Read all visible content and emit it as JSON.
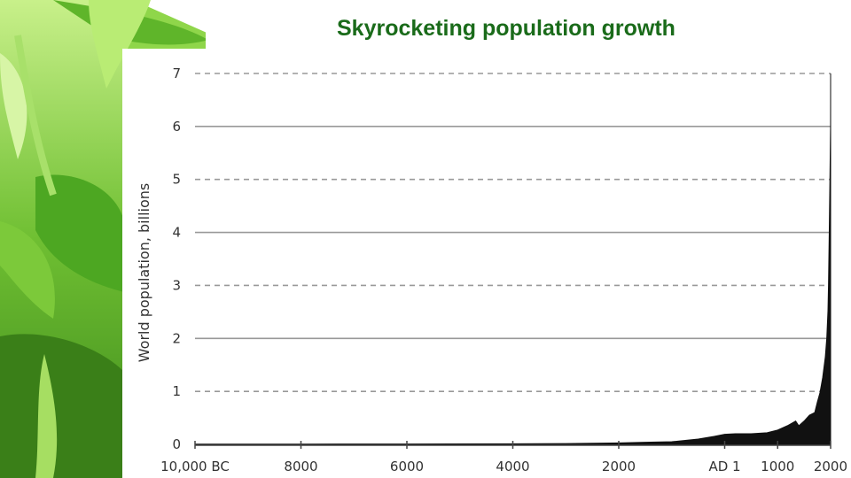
{
  "slide": {
    "title": "Skyrocketing population growth"
  },
  "chart_data": {
    "type": "area",
    "title": "Skyrocketing population growth",
    "xlabel": "",
    "ylabel": "World population, billions",
    "x_tick_labels": [
      "10,000 BC",
      "8000",
      "6000",
      "4000",
      "2000",
      "AD 1",
      "1000",
      "2000"
    ],
    "x_ticks": [
      -10000,
      -8000,
      -6000,
      -4000,
      -2000,
      0,
      1000,
      2000
    ],
    "xlim": [
      -10000,
      2000
    ],
    "ylim": [
      0,
      7
    ],
    "y_ticks": [
      0,
      1,
      2,
      3,
      4,
      5,
      6,
      7
    ],
    "grid": "horizontal, dashed at odd values, solid at even values",
    "series": [
      {
        "x": [
          -10000,
          -8000,
          -6000,
          -4000,
          -3000,
          -2000,
          -1500,
          -1000,
          -500,
          -200,
          0,
          200,
          500,
          800,
          1000,
          1200,
          1340,
          1400,
          1500,
          1600,
          1700,
          1750,
          1800,
          1850,
          1900,
          1927,
          1950,
          1960,
          1974,
          1987,
          1999,
          2000
        ],
        "y": [
          0.004,
          0.005,
          0.007,
          0.01,
          0.014,
          0.027,
          0.04,
          0.05,
          0.1,
          0.15,
          0.19,
          0.2,
          0.2,
          0.22,
          0.27,
          0.36,
          0.44,
          0.35,
          0.44,
          0.55,
          0.6,
          0.8,
          0.98,
          1.26,
          1.65,
          2.0,
          2.52,
          3.02,
          4.0,
          5.0,
          6.0,
          7.0
        ]
      }
    ],
    "colors": {
      "fill": "#111111",
      "grid": "#999999",
      "axis": "#444444"
    }
  }
}
